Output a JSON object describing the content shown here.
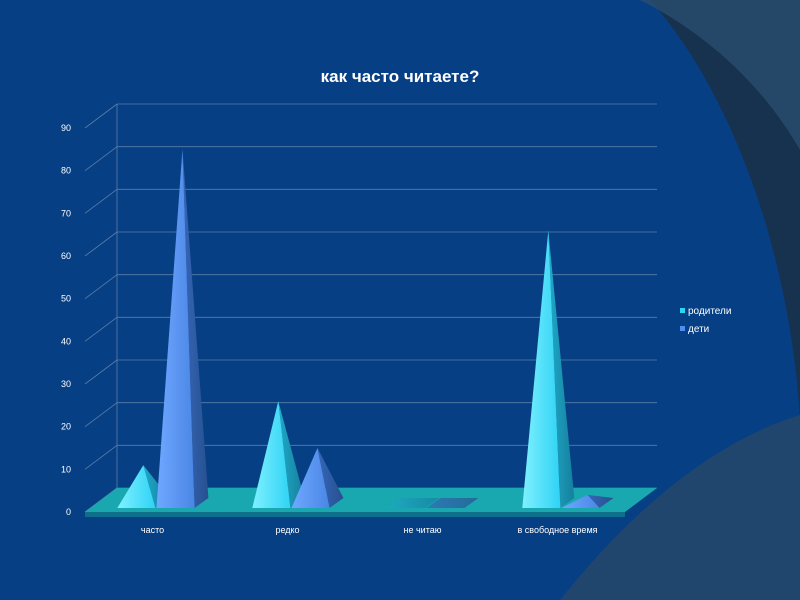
{
  "colors": {
    "slide_bg": "#073f85",
    "outer_bg": "#17324f",
    "gridline": "#5a7fa8",
    "floor": "#1aa8b0",
    "series_1": "#2fd3f5",
    "series_2": "#4f8ff0"
  },
  "chart_data": {
    "type": "bar",
    "style": "3d-pyramid",
    "title": "как часто читаете?",
    "categories": [
      "часто",
      "редко",
      "не читаю",
      "в свободное время"
    ],
    "series": [
      {
        "name": "родители",
        "values": [
          11,
          26,
          0,
          66
        ]
      },
      {
        "name": "дети",
        "values": [
          85,
          15,
          0,
          4
        ]
      }
    ],
    "ylim": [
      0,
      90
    ],
    "yticks": [
      0,
      10,
      20,
      30,
      40,
      50,
      60,
      70,
      80,
      90
    ],
    "grid": true,
    "legend_position": "right"
  }
}
